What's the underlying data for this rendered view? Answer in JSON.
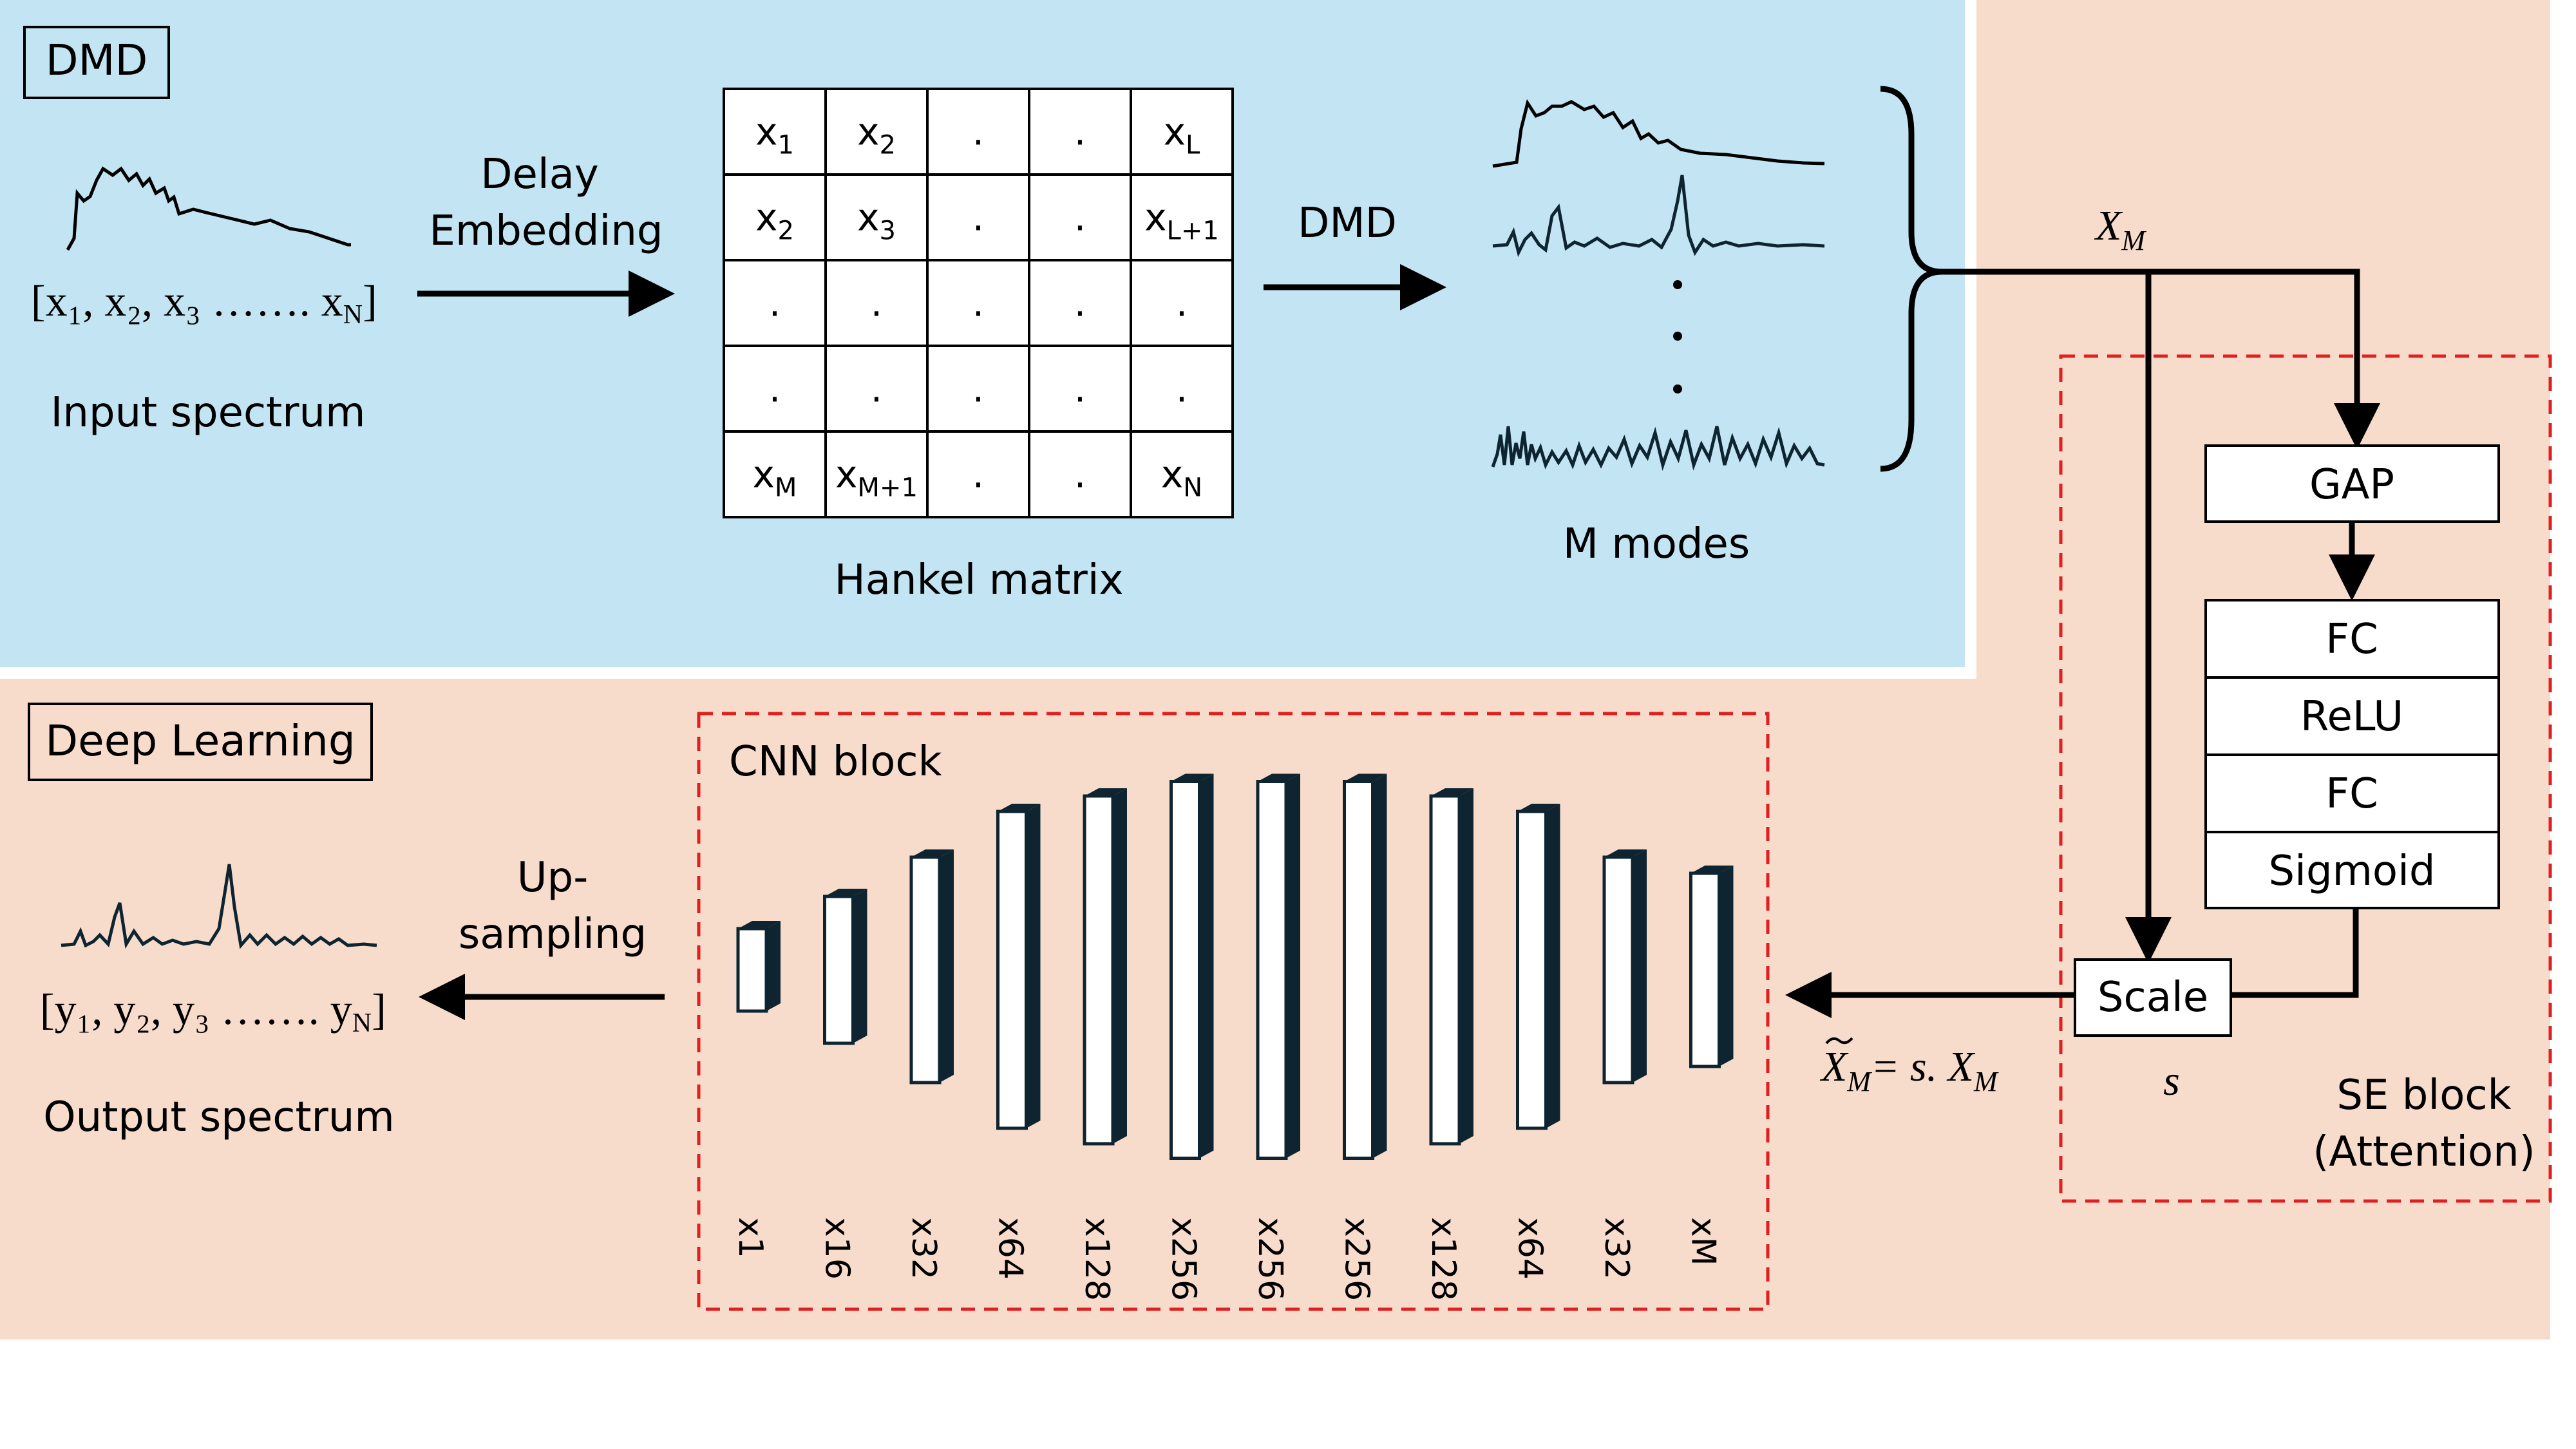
{
  "colors": {
    "dmd_bg": "#c2e4f3",
    "dl_bg": "#f8dccb",
    "dashed": "#e02020",
    "ink": "#000000",
    "layer_dark": "#0e2430"
  },
  "dmd": {
    "title": "DMD",
    "input_label": "Input spectrum",
    "input_vector": "[x₁, x₂, x₃ ……. x",
    "input_vector_sub": "N",
    "input_vector_close": "]",
    "delay_1": "Delay",
    "delay_2": "Embedding",
    "arrow_dmd_label": "DMD",
    "hankel_label": "Hankel matrix",
    "hankel_rows": [
      [
        {
          "t": "x",
          "s": "1"
        },
        {
          "t": "x",
          "s": "2"
        },
        {
          "t": ".",
          "s": ""
        },
        {
          "t": ".",
          "s": ""
        },
        {
          "t": "x",
          "s": "L"
        }
      ],
      [
        {
          "t": "x",
          "s": "2"
        },
        {
          "t": "x",
          "s": "3"
        },
        {
          "t": ".",
          "s": ""
        },
        {
          "t": ".",
          "s": ""
        },
        {
          "t": "x",
          "s": "L+1"
        }
      ],
      [
        {
          "t": ".",
          "s": ""
        },
        {
          "t": ".",
          "s": ""
        },
        {
          "t": ".",
          "s": ""
        },
        {
          "t": ".",
          "s": ""
        },
        {
          "t": ".",
          "s": ""
        }
      ],
      [
        {
          "t": ".",
          "s": ""
        },
        {
          "t": ".",
          "s": ""
        },
        {
          "t": ".",
          "s": ""
        },
        {
          "t": ".",
          "s": ""
        },
        {
          "t": ".",
          "s": ""
        }
      ],
      [
        {
          "t": "x",
          "s": "M"
        },
        {
          "t": "x",
          "s": "M+1"
        },
        {
          "t": ".",
          "s": ""
        },
        {
          "t": ".",
          "s": ""
        },
        {
          "t": "x",
          "s": "N"
        }
      ]
    ],
    "modes_label": "M modes",
    "xm_label": "X",
    "xm_sub": "M"
  },
  "se": {
    "gap": "GAP",
    "fc1": "FC",
    "relu": "ReLU",
    "fc2": "FC",
    "sigmoid": "Sigmoid",
    "scale": "Scale",
    "s_label": "s",
    "block_label_1": "SE block",
    "block_label_2": "(Attention)"
  },
  "dl": {
    "title": "Deep Learning",
    "cnn_title": "CNN block",
    "layers": [
      "x1",
      "x16",
      "x32",
      "x64",
      "x128",
      "x256",
      "x256",
      "x256",
      "x128",
      "x64",
      "x32",
      "xM"
    ],
    "xtilde_eq": "= s. X",
    "xtilde_sym": "X",
    "xtilde_sub": "M",
    "xtilde_eq_sub": "M",
    "upsampling_1": "Up-",
    "upsampling_2": "sampling",
    "output_vector": "[y₁, y₂, y₃ ……. y",
    "output_vector_sub": "N",
    "output_vector_close": "]",
    "output_label": "Output spectrum"
  }
}
